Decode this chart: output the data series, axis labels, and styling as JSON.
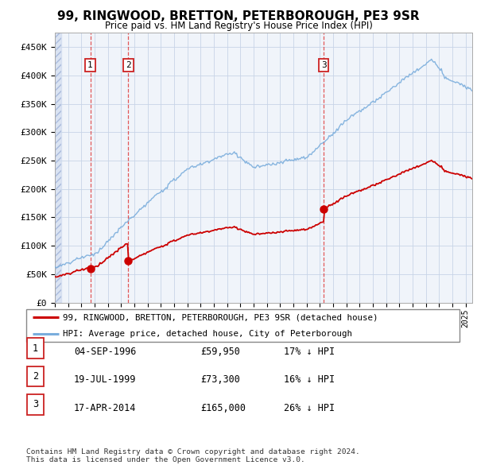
{
  "title": "99, RINGWOOD, BRETTON, PETERBOROUGH, PE3 9SR",
  "subtitle": "Price paid vs. HM Land Registry's House Price Index (HPI)",
  "ylabel_ticks": [
    "£0",
    "£50K",
    "£100K",
    "£150K",
    "£200K",
    "£250K",
    "£300K",
    "£350K",
    "£400K",
    "£450K"
  ],
  "ytick_values": [
    0,
    50000,
    100000,
    150000,
    200000,
    250000,
    300000,
    350000,
    400000,
    450000
  ],
  "ylim": [
    0,
    475000
  ],
  "hpi_color": "#7aaddc",
  "price_color": "#cc0000",
  "sale_dates_num": [
    1996.673,
    1999.542,
    2014.292
  ],
  "sale_prices": [
    59950,
    73300,
    165000
  ],
  "sale_labels": [
    "1",
    "2",
    "3"
  ],
  "legend_entries": [
    "99, RINGWOOD, BRETTON, PETERBOROUGH, PE3 9SR (detached house)",
    "HPI: Average price, detached house, City of Peterborough"
  ],
  "table_data": [
    [
      "1",
      "04-SEP-1996",
      "£59,950",
      "17% ↓ HPI"
    ],
    [
      "2",
      "19-JUL-1999",
      "£73,300",
      "16% ↓ HPI"
    ],
    [
      "3",
      "17-APR-2014",
      "£165,000",
      "26% ↓ HPI"
    ]
  ],
  "footer": "Contains HM Land Registry data © Crown copyright and database right 2024.\nThis data is licensed under the Open Government Licence v3.0.",
  "xstart": 1994.0,
  "xend": 2025.5
}
